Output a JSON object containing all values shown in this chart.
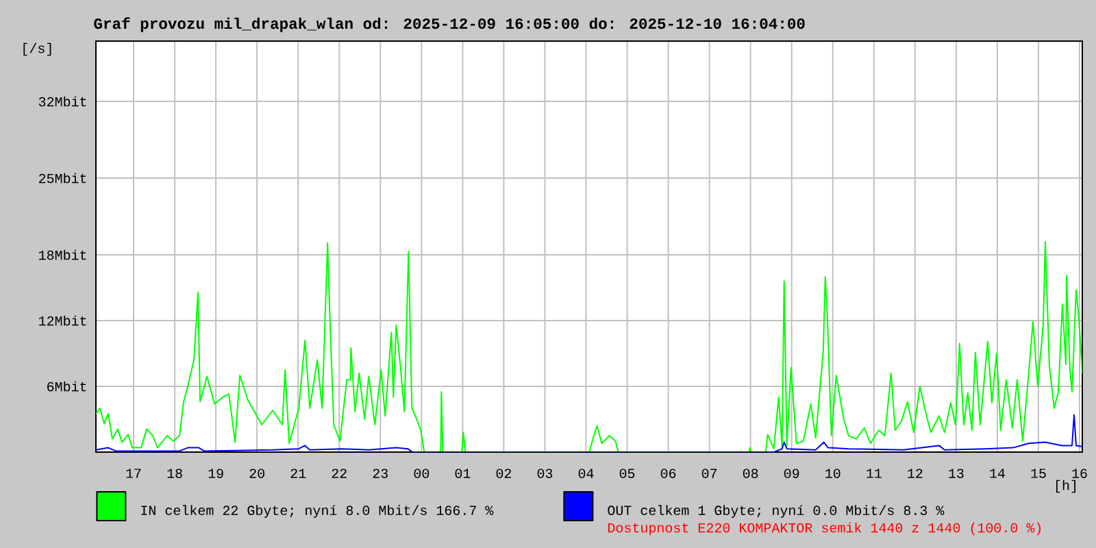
{
  "chart_data": {
    "type": "line",
    "title": "Graf provozu mil_drapak_wlan od: 2025-12-09 16:05:00 do: 2025-12-10 16:04:00",
    "xlabel": "[h]",
    "ylabel": "[/s]",
    "xlim": [
      "2025-12-09T16:05",
      "2025-12-10T16:04"
    ],
    "ylim": [
      0,
      37.5
    ],
    "xticks": [
      {
        "value": "2025-12-09T17:00",
        "label": "17"
      },
      {
        "value": "2025-12-09T18:00",
        "label": "18"
      },
      {
        "value": "2025-12-09T19:00",
        "label": "19"
      },
      {
        "value": "2025-12-09T20:00",
        "label": "20"
      },
      {
        "value": "2025-12-09T21:00",
        "label": "21"
      },
      {
        "value": "2025-12-09T22:00",
        "label": "22"
      },
      {
        "value": "2025-12-09T23:00",
        "label": "23"
      },
      {
        "value": "2025-12-10T00:00",
        "label": "00"
      },
      {
        "value": "2025-12-10T01:00",
        "label": "01"
      },
      {
        "value": "2025-12-10T02:00",
        "label": "02"
      },
      {
        "value": "2025-12-10T03:00",
        "label": "03"
      },
      {
        "value": "2025-12-10T04:00",
        "label": "04"
      },
      {
        "value": "2025-12-10T05:00",
        "label": "05"
      },
      {
        "value": "2025-12-10T06:00",
        "label": "06"
      },
      {
        "value": "2025-12-10T07:00",
        "label": "07"
      },
      {
        "value": "2025-12-10T08:00",
        "label": "08"
      },
      {
        "value": "2025-12-10T09:00",
        "label": "09"
      },
      {
        "value": "2025-12-10T10:00",
        "label": "10"
      },
      {
        "value": "2025-12-10T11:00",
        "label": "11"
      },
      {
        "value": "2025-12-10T12:00",
        "label": "12"
      },
      {
        "value": "2025-12-10T13:00",
        "label": "13"
      },
      {
        "value": "2025-12-10T14:00",
        "label": "14"
      },
      {
        "value": "2025-12-10T15:00",
        "label": "15"
      },
      {
        "value": "2025-12-10T16:00",
        "label": "16"
      }
    ],
    "yticks": [
      {
        "value": 6,
        "label": "6Mbit"
      },
      {
        "value": 12,
        "label": "12Mbit"
      },
      {
        "value": 18,
        "label": "18Mbit"
      },
      {
        "value": 25,
        "label": "25Mbit"
      },
      {
        "value": 32,
        "label": "32Mbit"
      }
    ],
    "grid": true,
    "legend": "bottom",
    "marker": "none",
    "line_style": "solid",
    "series": [
      {
        "name": "IN celkem 22 Gbyte; nyní 8.0 Mbit/s 166.7 %",
        "color": "#00ff00",
        "x": [
          "2025-12-09T16:05",
          "2025-12-09T16:11",
          "2025-12-09T16:17",
          "2025-12-09T16:23",
          "2025-12-09T16:29",
          "2025-12-09T16:37",
          "2025-12-09T16:43",
          "2025-12-09T16:52",
          "2025-12-09T16:58",
          "2025-12-09T17:11",
          "2025-12-09T17:19",
          "2025-12-09T17:28",
          "2025-12-09T17:35",
          "2025-12-09T17:49",
          "2025-12-09T17:58",
          "2025-12-09T18:07",
          "2025-12-09T18:13",
          "2025-12-09T18:19",
          "2025-12-09T18:28",
          "2025-12-09T18:34",
          "2025-12-09T18:37",
          "2025-12-09T18:47",
          "2025-12-09T18:58",
          "2025-12-09T19:10",
          "2025-12-09T19:19",
          "2025-12-09T19:28",
          "2025-12-09T19:35",
          "2025-12-09T19:47",
          "2025-12-09T20:07",
          "2025-12-09T20:23",
          "2025-12-09T20:37",
          "2025-12-09T20:41",
          "2025-12-09T20:47",
          "2025-12-09T21:01",
          "2025-12-09T21:10",
          "2025-12-09T21:17",
          "2025-12-09T21:28",
          "2025-12-09T21:35",
          "2025-12-09T21:43",
          "2025-12-09T21:46",
          "2025-12-09T21:52",
          "2025-12-09T22:01",
          "2025-12-09T22:11",
          "2025-12-09T22:16",
          "2025-12-09T22:17",
          "2025-12-09T22:23",
          "2025-12-09T22:29",
          "2025-12-09T22:37",
          "2025-12-09T22:43",
          "2025-12-09T22:52",
          "2025-12-09T23:01",
          "2025-12-09T23:07",
          "2025-12-09T23:16",
          "2025-12-09T23:19",
          "2025-12-09T23:23",
          "2025-12-09T23:29",
          "2025-12-09T23:35",
          "2025-12-09T23:41",
          "2025-12-09T23:46",
          "2025-12-09T23:53",
          "2025-12-09T23:59",
          "2025-12-10T00:04",
          "2025-12-10T00:28",
          "2025-12-10T00:29",
          "2025-12-10T00:31",
          "2025-12-10T00:59",
          "2025-12-10T01:01",
          "2025-12-10T01:04",
          "2025-12-10T04:05",
          "2025-12-10T04:10",
          "2025-12-10T04:16",
          "2025-12-10T04:23",
          "2025-12-10T04:34",
          "2025-12-10T04:43",
          "2025-12-10T04:47",
          "2025-12-10T07:58",
          "2025-12-10T07:59",
          "2025-12-10T08:01",
          "2025-12-10T08:22",
          "2025-12-10T08:25",
          "2025-12-10T08:34",
          "2025-12-10T08:41",
          "2025-12-10T08:46",
          "2025-12-10T08:49",
          "2025-12-10T08:53",
          "2025-12-10T08:59",
          "2025-12-10T09:07",
          "2025-12-10T09:17",
          "2025-12-10T09:28",
          "2025-12-10T09:35",
          "2025-12-10T09:46",
          "2025-12-10T09:49",
          "2025-12-10T09:52",
          "2025-12-10T09:55",
          "2025-12-10T09:58",
          "2025-12-10T10:05",
          "2025-12-10T10:16",
          "2025-12-10T10:23",
          "2025-12-10T10:34",
          "2025-12-10T10:46",
          "2025-12-10T10:55",
          "2025-12-10T11:07",
          "2025-12-10T11:16",
          "2025-12-10T11:25",
          "2025-12-10T11:31",
          "2025-12-10T11:40",
          "2025-12-10T11:49",
          "2025-12-10T11:58",
          "2025-12-10T12:07",
          "2025-12-10T12:16",
          "2025-12-10T12:23",
          "2025-12-10T12:35",
          "2025-12-10T12:43",
          "2025-12-10T12:52",
          "2025-12-10T12:59",
          "2025-12-10T13:05",
          "2025-12-10T13:11",
          "2025-12-10T13:17",
          "2025-12-10T13:23",
          "2025-12-10T13:28",
          "2025-12-10T13:35",
          "2025-12-10T13:46",
          "2025-12-10T13:52",
          "2025-12-10T13:59",
          "2025-12-10T14:05",
          "2025-12-10T14:13",
          "2025-12-10T14:22",
          "2025-12-10T14:29",
          "2025-12-10T14:37",
          "2025-12-10T14:46",
          "2025-12-10T14:52",
          "2025-12-10T14:59",
          "2025-12-10T15:07",
          "2025-12-10T15:10",
          "2025-12-10T15:16",
          "2025-12-10T15:23",
          "2025-12-10T15:29",
          "2025-12-10T15:35",
          "2025-12-10T15:40",
          "2025-12-10T15:41",
          "2025-12-10T15:46",
          "2025-12-10T15:49",
          "2025-12-10T15:55",
          "2025-12-10T15:59",
          "2025-12-10T16:04"
        ],
        "values": [
          3.5,
          4.0,
          2.6,
          3.5,
          1.2,
          2.1,
          0.9,
          1.6,
          0.4,
          0.4,
          2.1,
          1.5,
          0.4,
          1.5,
          1.0,
          1.5,
          4.6,
          6.0,
          8.4,
          14.6,
          4.6,
          6.9,
          4.4,
          5.0,
          5.3,
          0.9,
          7.0,
          4.7,
          2.5,
          3.8,
          2.5,
          7.5,
          0.8,
          4.0,
          10.2,
          4.0,
          8.4,
          4.0,
          19.1,
          12.9,
          2.5,
          1.0,
          6.6,
          6.6,
          9.5,
          3.7,
          7.2,
          3.0,
          6.9,
          2.5,
          7.5,
          3.3,
          10.9,
          5.0,
          11.6,
          8.0,
          3.7,
          18.3,
          4.0,
          3.0,
          2.0,
          0,
          0,
          5.5,
          0,
          0,
          1.8,
          0,
          0,
          1.2,
          2.4,
          0.8,
          1.5,
          1.0,
          0,
          0,
          0.4,
          0,
          0,
          1.6,
          0.3,
          5.0,
          0.5,
          15.6,
          0.6,
          7.7,
          0.8,
          1.0,
          4.4,
          1.3,
          9.1,
          16.0,
          12.5,
          7.0,
          1.5,
          7.0,
          3.0,
          1.5,
          1.2,
          2.2,
          0.8,
          2.0,
          1.5,
          7.2,
          2.0,
          2.8,
          4.6,
          1.8,
          6.0,
          3.5,
          1.8,
          3.3,
          1.8,
          4.5,
          2.5,
          9.9,
          2.5,
          5.4,
          2.0,
          9.1,
          2.5,
          10.1,
          4.5,
          9.0,
          2.0,
          6.6,
          2.2,
          6.6,
          1.0,
          7.3,
          11.9,
          6.0,
          11.7,
          19.2,
          7.8,
          4.0,
          5.5,
          13.5,
          8.0,
          16.1,
          7.5,
          5.5,
          14.8,
          12.2,
          7.2
        ]
      },
      {
        "name": "OUT celkem 1 Gbyte; nyní 0.0 Mbit/s 8.3 %",
        "color": "#0000ff",
        "x": [
          "2025-12-09T16:05",
          "2025-12-09T16:23",
          "2025-12-09T16:34",
          "2025-12-09T18:07",
          "2025-12-09T18:19",
          "2025-12-09T18:35",
          "2025-12-09T18:43",
          "2025-12-09T20:23",
          "2025-12-09T21:01",
          "2025-12-09T21:10",
          "2025-12-09T21:17",
          "2025-12-09T22:04",
          "2025-12-09T22:43",
          "2025-12-09T23:23",
          "2025-12-09T23:40",
          "2025-12-09T23:47",
          "2025-12-10T08:34",
          "2025-12-10T08:46",
          "2025-12-10T08:49",
          "2025-12-10T08:53",
          "2025-12-10T09:35",
          "2025-12-10T09:47",
          "2025-12-10T09:53",
          "2025-12-10T10:23",
          "2025-12-10T11:43",
          "2025-12-10T12:35",
          "2025-12-10T12:43",
          "2025-12-10T13:43",
          "2025-12-10T14:23",
          "2025-12-10T14:46",
          "2025-12-10T15:10",
          "2025-12-10T15:34",
          "2025-12-10T15:49",
          "2025-12-10T15:52",
          "2025-12-10T15:55",
          "2025-12-10T16:04"
        ],
        "values": [
          0.2,
          0.4,
          0.1,
          0.1,
          0.4,
          0.4,
          0.1,
          0.2,
          0.3,
          0.6,
          0.2,
          0.3,
          0.2,
          0.4,
          0.3,
          0,
          0,
          0.3,
          0.9,
          0.3,
          0.2,
          0.9,
          0.4,
          0.3,
          0.2,
          0.6,
          0.2,
          0.3,
          0.4,
          0.8,
          0.9,
          0.6,
          0.6,
          3.4,
          0.6,
          0.5
        ]
      }
    ],
    "annotations": [
      "Dostupnost E220 KOMPAKTOR semik 1440 z 1440 (100.0 %)"
    ]
  }
}
